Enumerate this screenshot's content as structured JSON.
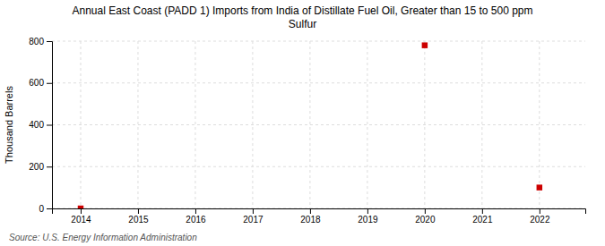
{
  "chart_data": {
    "type": "scatter",
    "title": "Annual East Coast (PADD 1) Imports from India of Distillate Fuel Oil, Greater than 15 to 500 ppm",
    "subtitle": "Sulfur",
    "y_label": "Thousand Barrels",
    "annotations": [
      "Source: U.S. Energy Information Administration"
    ],
    "x": [
      2014,
      2020,
      2022
    ],
    "values": [
      0,
      780,
      100
    ],
    "color": "#cc0000",
    "marker": "square",
    "xlim": [
      2013.5,
      2022.8
    ],
    "ylim": [
      0,
      800
    ],
    "xticks": [
      2014,
      2015,
      2016,
      2017,
      2018,
      2019,
      2020,
      2021,
      2022
    ],
    "yticks": [
      0,
      200,
      400,
      600,
      800
    ],
    "grid": true
  }
}
